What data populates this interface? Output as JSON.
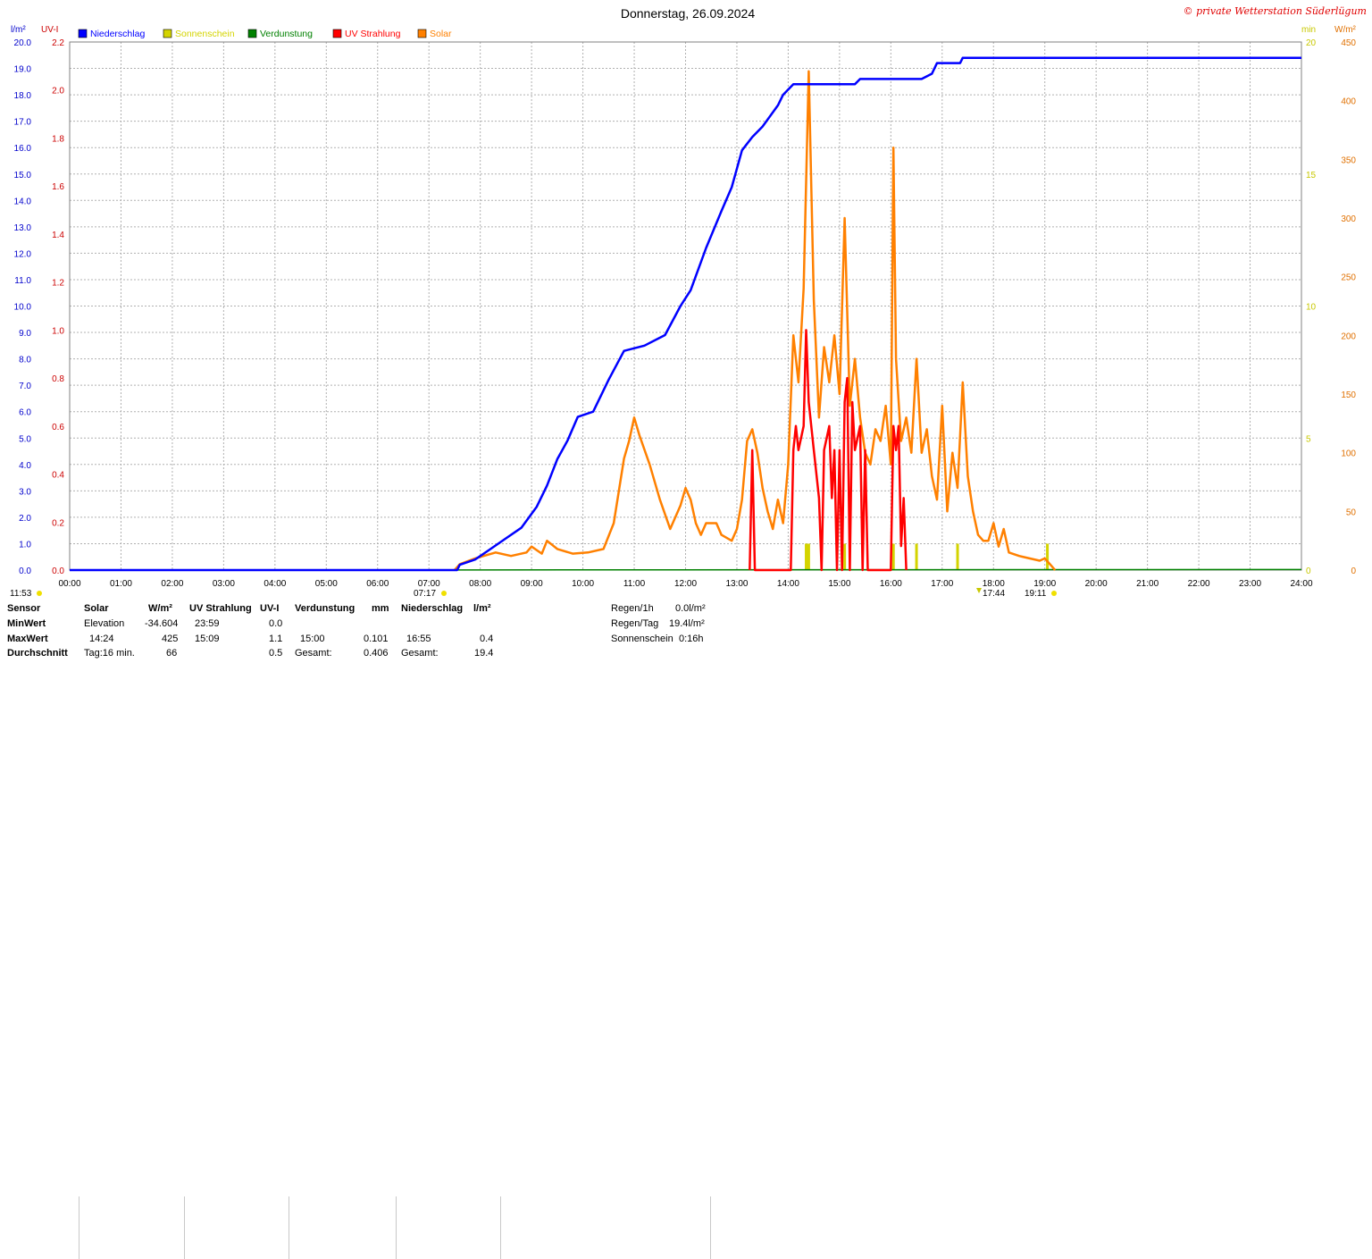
{
  "title": "Donnerstag, 26.09.2024",
  "copyright": "© private Wetterstation Süderlügum",
  "colors": {
    "rain": "#0000ff",
    "sun": "#d4d400",
    "evap": "#008000",
    "uv": "#ff0000",
    "solar": "#ff8000"
  },
  "axes": {
    "left1_unit": "l/m²",
    "left2_unit": "UV-I",
    "right1_unit": "min",
    "right2_unit": "W/m²",
    "left1_ticks": [
      "0.0",
      "1.0",
      "2.0",
      "3.0",
      "4.0",
      "5.0",
      "6.0",
      "7.0",
      "8.0",
      "9.0",
      "10.0",
      "11.0",
      "12.0",
      "13.0",
      "14.0",
      "15.0",
      "16.0",
      "17.0",
      "18.0",
      "19.0",
      "20.0"
    ],
    "left2_ticks": [
      "0.0",
      "0.2",
      "0.4",
      "0.6",
      "0.8",
      "1.0",
      "1.2",
      "1.4",
      "1.6",
      "1.8",
      "2.0",
      "2.2"
    ],
    "right1_ticks": [
      "0",
      "5",
      "10",
      "15",
      "20"
    ],
    "right2_ticks": [
      "0",
      "50",
      "100",
      "150",
      "200",
      "250",
      "300",
      "350",
      "400",
      "450"
    ],
    "x_ticks": [
      "00:00",
      "01:00",
      "02:00",
      "03:00",
      "04:00",
      "05:00",
      "06:00",
      "07:00",
      "08:00",
      "09:00",
      "10:00",
      "11:00",
      "12:00",
      "13:00",
      "14:00",
      "15:00",
      "16:00",
      "17:00",
      "18:00",
      "19:00",
      "20:00",
      "21:00",
      "22:00",
      "23:00",
      "24:00"
    ]
  },
  "legend": [
    {
      "name": "Niederschlag",
      "color": "#0000ff"
    },
    {
      "name": "Sonnenschein",
      "color": "#d4d400"
    },
    {
      "name": "Verdunstung",
      "color": "#008000"
    },
    {
      "name": "UV Strahlung",
      "color": "#ff0000"
    },
    {
      "name": "Solar",
      "color": "#ff8000"
    }
  ],
  "markers": {
    "moonrise": "11:53",
    "sunrise": "07:17",
    "mid1": "17:44",
    "sunset": "19:11"
  },
  "chart_data": {
    "type": "line",
    "x_unit": "hours",
    "xlim": [
      0,
      24
    ],
    "ylim_rain": [
      0,
      20
    ],
    "ylim_uv": [
      0,
      2.2
    ],
    "ylim_sun": [
      0,
      20
    ],
    "ylim_solar": [
      0,
      450
    ],
    "grid": true,
    "series": [
      {
        "name": "Niederschlag",
        "axis": "rain",
        "points": [
          [
            0,
            0
          ],
          [
            7.55,
            0
          ],
          [
            7.6,
            0.2
          ],
          [
            7.9,
            0.4
          ],
          [
            8.2,
            0.8
          ],
          [
            8.5,
            1.2
          ],
          [
            8.8,
            1.6
          ],
          [
            9.1,
            2.4
          ],
          [
            9.3,
            3.2
          ],
          [
            9.5,
            4.2
          ],
          [
            9.7,
            4.9
          ],
          [
            9.9,
            5.8
          ],
          [
            10.2,
            6.0
          ],
          [
            10.5,
            7.2
          ],
          [
            10.8,
            8.3
          ],
          [
            11.2,
            8.5
          ],
          [
            11.6,
            8.9
          ],
          [
            11.9,
            10.0
          ],
          [
            12.1,
            10.6
          ],
          [
            12.4,
            12.2
          ],
          [
            12.7,
            13.6
          ],
          [
            12.9,
            14.5
          ],
          [
            13.1,
            15.9
          ],
          [
            13.3,
            16.4
          ],
          [
            13.5,
            16.8
          ],
          [
            13.8,
            17.6
          ],
          [
            13.9,
            18.0
          ],
          [
            14.1,
            18.4
          ],
          [
            15.3,
            18.4
          ],
          [
            15.4,
            18.6
          ],
          [
            16.6,
            18.6
          ],
          [
            16.8,
            18.8
          ],
          [
            16.9,
            19.2
          ],
          [
            17.35,
            19.2
          ],
          [
            17.4,
            19.4
          ],
          [
            24,
            19.4
          ]
        ]
      },
      {
        "name": "Solar",
        "axis": "solar",
        "points": [
          [
            7.5,
            0
          ],
          [
            7.6,
            5
          ],
          [
            7.9,
            10
          ],
          [
            8.3,
            15
          ],
          [
            8.6,
            12
          ],
          [
            8.9,
            15
          ],
          [
            9.0,
            20
          ],
          [
            9.2,
            14
          ],
          [
            9.3,
            25
          ],
          [
            9.5,
            18
          ],
          [
            9.8,
            14
          ],
          [
            10.1,
            15
          ],
          [
            10.4,
            18
          ],
          [
            10.6,
            40
          ],
          [
            10.8,
            95
          ],
          [
            10.9,
            110
          ],
          [
            11.0,
            130
          ],
          [
            11.1,
            115
          ],
          [
            11.3,
            90
          ],
          [
            11.5,
            60
          ],
          [
            11.7,
            35
          ],
          [
            11.9,
            55
          ],
          [
            12.0,
            70
          ],
          [
            12.1,
            60
          ],
          [
            12.2,
            40
          ],
          [
            12.3,
            30
          ],
          [
            12.4,
            40
          ],
          [
            12.6,
            40
          ],
          [
            12.7,
            30
          ],
          [
            12.9,
            25
          ],
          [
            13.0,
            35
          ],
          [
            13.1,
            60
          ],
          [
            13.2,
            110
          ],
          [
            13.3,
            120
          ],
          [
            13.4,
            100
          ],
          [
            13.5,
            70
          ],
          [
            13.6,
            50
          ],
          [
            13.7,
            35
          ],
          [
            13.8,
            60
          ],
          [
            13.9,
            40
          ],
          [
            14.0,
            90
          ],
          [
            14.1,
            200
          ],
          [
            14.2,
            160
          ],
          [
            14.3,
            240
          ],
          [
            14.4,
            425
          ],
          [
            14.5,
            230
          ],
          [
            14.6,
            130
          ],
          [
            14.7,
            190
          ],
          [
            14.8,
            160
          ],
          [
            14.9,
            200
          ],
          [
            15.0,
            150
          ],
          [
            15.1,
            300
          ],
          [
            15.2,
            140
          ],
          [
            15.3,
            180
          ],
          [
            15.4,
            130
          ],
          [
            15.5,
            100
          ],
          [
            15.6,
            90
          ],
          [
            15.7,
            120
          ],
          [
            15.8,
            110
          ],
          [
            15.9,
            140
          ],
          [
            16.0,
            90
          ],
          [
            16.05,
            360
          ],
          [
            16.1,
            180
          ],
          [
            16.2,
            110
          ],
          [
            16.3,
            130
          ],
          [
            16.4,
            100
          ],
          [
            16.5,
            180
          ],
          [
            16.6,
            100
          ],
          [
            16.7,
            120
          ],
          [
            16.8,
            80
          ],
          [
            16.9,
            60
          ],
          [
            17.0,
            140
          ],
          [
            17.1,
            50
          ],
          [
            17.2,
            100
          ],
          [
            17.3,
            70
          ],
          [
            17.4,
            160
          ],
          [
            17.5,
            80
          ],
          [
            17.6,
            50
          ],
          [
            17.7,
            30
          ],
          [
            17.8,
            25
          ],
          [
            17.9,
            25
          ],
          [
            18.0,
            40
          ],
          [
            18.1,
            20
          ],
          [
            18.2,
            35
          ],
          [
            18.3,
            15
          ],
          [
            18.5,
            12
          ],
          [
            18.7,
            10
          ],
          [
            18.9,
            8
          ],
          [
            19.0,
            10
          ],
          [
            19.1,
            5
          ],
          [
            19.2,
            0
          ]
        ]
      },
      {
        "name": "UV Strahlung",
        "axis": "uv",
        "points": [
          [
            13.25,
            0
          ],
          [
            13.3,
            0.5
          ],
          [
            13.35,
            0
          ],
          [
            14.05,
            0
          ],
          [
            14.1,
            0.5
          ],
          [
            14.15,
            0.6
          ],
          [
            14.2,
            0.5
          ],
          [
            14.3,
            0.6
          ],
          [
            14.35,
            1.0
          ],
          [
            14.4,
            0.7
          ],
          [
            14.5,
            0.5
          ],
          [
            14.6,
            0.3
          ],
          [
            14.65,
            0
          ],
          [
            14.7,
            0.5
          ],
          [
            14.8,
            0.6
          ],
          [
            14.85,
            0.3
          ],
          [
            14.9,
            0.5
          ],
          [
            14.95,
            0
          ],
          [
            15.0,
            0.5
          ],
          [
            15.05,
            0
          ],
          [
            15.1,
            0.7
          ],
          [
            15.15,
            0.8
          ],
          [
            15.2,
            0
          ],
          [
            15.25,
            0.7
          ],
          [
            15.3,
            0.5
          ],
          [
            15.4,
            0.6
          ],
          [
            15.45,
            0
          ],
          [
            15.5,
            0.5
          ],
          [
            15.55,
            0
          ],
          [
            16.0,
            0
          ],
          [
            16.05,
            0.6
          ],
          [
            16.1,
            0.5
          ],
          [
            16.15,
            0.6
          ],
          [
            16.2,
            0.1
          ],
          [
            16.25,
            0.3
          ],
          [
            16.3,
            0
          ]
        ]
      },
      {
        "name": "Sonnenschein",
        "axis": "sun",
        "bars": [
          [
            14.35,
            1
          ],
          [
            14.4,
            1
          ],
          [
            15.1,
            1
          ],
          [
            16.05,
            1
          ],
          [
            16.5,
            1
          ],
          [
            17.3,
            1
          ],
          [
            19.05,
            1
          ]
        ]
      },
      {
        "name": "Verdunstung",
        "axis": "rain",
        "points": [
          [
            0,
            0
          ],
          [
            24,
            0.02
          ]
        ]
      }
    ]
  },
  "stats": {
    "col_sensor": "Sensor",
    "col_solar": "Solar",
    "unit_solar": "W/m²",
    "col_uv": "UV Strahlung",
    "unit_uv": "UV-I",
    "col_evap": "Verdunstung",
    "unit_evap": "mm",
    "col_rain": "Niederschlag",
    "unit_rain": "l/m²",
    "row_min": "MinWert",
    "row_max": "MaxWert",
    "row_avg": "Durchschnitt",
    "min_solar_label": "Elevation",
    "min_solar_val": "-34.604",
    "max_solar_time": "14:24",
    "max_solar_val": "425",
    "avg_solar_label": "Tag:16 min.",
    "avg_solar_val": "66",
    "min_uv_time": "23:59",
    "min_uv_val": "0.0",
    "max_uv_time": "15:09",
    "max_uv_val": "1.1",
    "avg_uv_val": "0.5",
    "max_evap_time": "15:00",
    "max_evap_val": "0.101",
    "avg_evap_label": "Gesamt:",
    "avg_evap_val": "0.406",
    "max_rain_time": "16:55",
    "max_rain_val": "0.4",
    "avg_rain_label": "Gesamt:",
    "avg_rain_val": "19.4",
    "regen1h_label": "Regen/1h",
    "regen1h_val": "0.0l/m²",
    "regentag_label": "Regen/Tag",
    "regentag_val": "19.4l/m²",
    "sonne_label": "Sonnenschein",
    "sonne_val": "0:16h"
  }
}
